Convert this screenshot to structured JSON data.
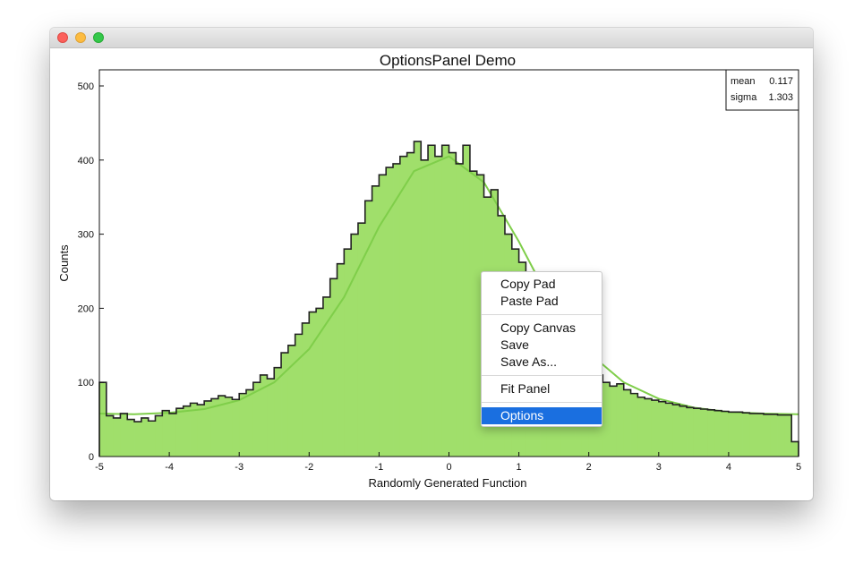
{
  "window": {
    "controls": [
      "close",
      "minimize",
      "zoom"
    ]
  },
  "stats": {
    "mean_label": "mean",
    "mean_value": "0.117",
    "sigma_label": "sigma",
    "sigma_value": "1.303"
  },
  "context_menu": {
    "items": [
      {
        "label": "Copy Pad",
        "group": 0
      },
      {
        "label": "Paste Pad",
        "group": 0
      },
      {
        "label": "Copy Canvas",
        "group": 1
      },
      {
        "label": "Save",
        "group": 1
      },
      {
        "label": "Save As...",
        "group": 1
      },
      {
        "label": "Fit Panel",
        "group": 2
      },
      {
        "label": "Options",
        "group": 3,
        "selected": true
      }
    ],
    "selected_color": "#1a6fe0"
  },
  "chart_data": {
    "type": "bar",
    "title": "OptionsPanel Demo",
    "xlabel": "Randomly Generated Function",
    "ylabel": "Counts",
    "xlim": [
      -5,
      5
    ],
    "ylim": [
      0,
      500
    ],
    "xticks": [
      -5,
      -4,
      -3,
      -2,
      -1,
      0,
      1,
      2,
      3,
      4,
      5
    ],
    "yticks": [
      0,
      100,
      200,
      300,
      400,
      500
    ],
    "grid": false,
    "fill_color": "#a0df6b",
    "outline_color": "#222222",
    "fit_color": "#7fce4a",
    "bin_width": 0.1,
    "x": [
      -4.95,
      -4.85,
      -4.75,
      -4.65,
      -4.55,
      -4.45,
      -4.35,
      -4.25,
      -4.15,
      -4.05,
      -3.95,
      -3.85,
      -3.75,
      -3.65,
      -3.55,
      -3.45,
      -3.35,
      -3.25,
      -3.15,
      -3.05,
      -2.95,
      -2.85,
      -2.75,
      -2.65,
      -2.55,
      -2.45,
      -2.35,
      -2.25,
      -2.15,
      -2.05,
      -1.95,
      -1.85,
      -1.75,
      -1.65,
      -1.55,
      -1.45,
      -1.35,
      -1.25,
      -1.15,
      -1.05,
      -0.95,
      -0.85,
      -0.75,
      -0.65,
      -0.55,
      -0.45,
      -0.35,
      -0.25,
      -0.15,
      -0.05,
      0.05,
      0.15,
      0.25,
      0.35,
      0.45,
      0.55,
      0.65,
      0.75,
      0.85,
      0.95,
      1.05,
      1.15,
      1.25,
      1.35,
      1.45,
      1.55,
      1.65,
      1.75,
      1.85,
      1.95,
      2.05,
      2.15,
      2.25,
      2.35,
      2.45,
      2.55,
      2.65,
      2.75,
      2.85,
      2.95,
      3.05,
      3.15,
      3.25,
      3.35,
      3.45,
      3.55,
      3.65,
      3.75,
      3.85,
      3.95,
      4.05,
      4.15,
      4.25,
      4.35,
      4.45,
      4.55,
      4.65,
      4.75,
      4.85,
      4.95
    ],
    "values": [
      100,
      55,
      52,
      58,
      50,
      47,
      52,
      48,
      55,
      62,
      58,
      65,
      68,
      72,
      70,
      75,
      78,
      82,
      80,
      77,
      85,
      90,
      100,
      110,
      105,
      120,
      140,
      150,
      165,
      180,
      195,
      200,
      215,
      240,
      260,
      280,
      300,
      315,
      345,
      365,
      380,
      390,
      395,
      405,
      410,
      425,
      400,
      420,
      405,
      420,
      410,
      395,
      420,
      385,
      380,
      350,
      360,
      325,
      300,
      280,
      262,
      240,
      215,
      200,
      190,
      175,
      160,
      145,
      130,
      125,
      120,
      110,
      100,
      95,
      98,
      90,
      85,
      80,
      78,
      76,
      74,
      72,
      70,
      68,
      66,
      65,
      64,
      63,
      62,
      61,
      60,
      60,
      59,
      58,
      58,
      57,
      57,
      56,
      56,
      20
    ],
    "fit_x": [
      -5,
      -4.5,
      -4,
      -3.5,
      -3,
      -2.5,
      -2,
      -1.5,
      -1,
      -0.5,
      0,
      0.5,
      1,
      1.5,
      2,
      2.5,
      3,
      3.5,
      4,
      4.5,
      5
    ],
    "fit_y": [
      58,
      57,
      59,
      64,
      76,
      100,
      145,
      215,
      310,
      385,
      405,
      370,
      290,
      200,
      140,
      100,
      78,
      66,
      60,
      58,
      57
    ]
  }
}
